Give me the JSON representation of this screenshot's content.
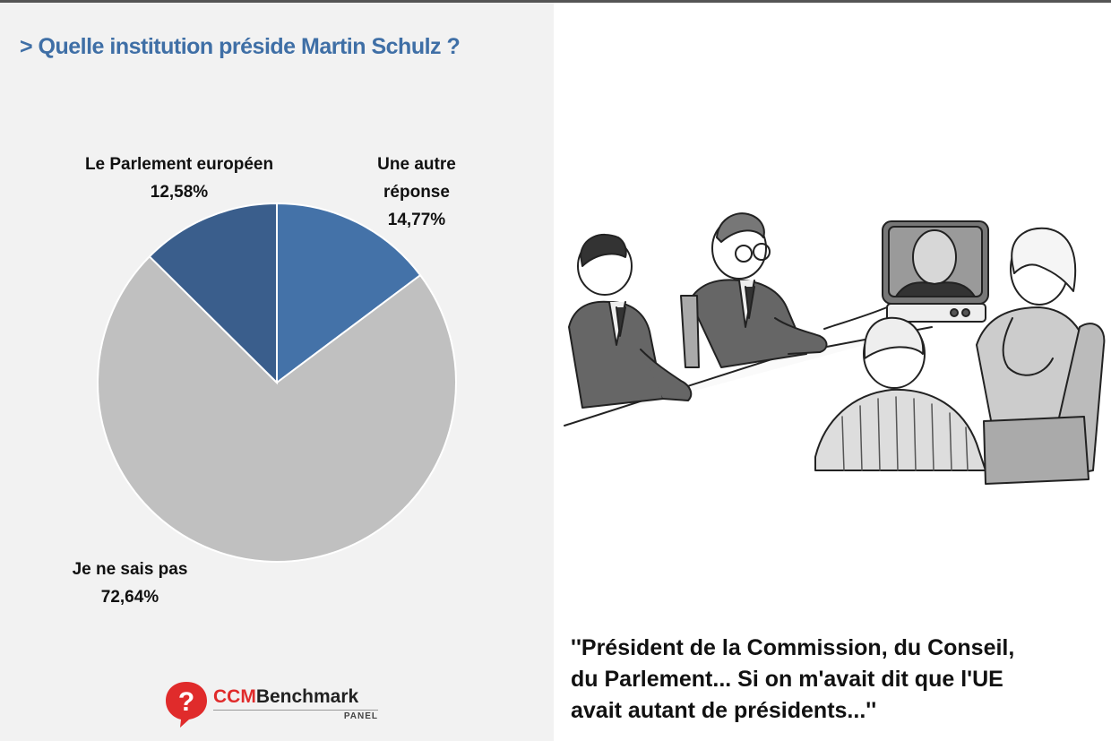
{
  "chart_data": {
    "type": "pie",
    "title": "> Quelle institution préside Martin Schulz ?",
    "slices": [
      {
        "label": "Une autre réponse",
        "label_lines": [
          "Une autre",
          "réponse"
        ],
        "value": 14.77,
        "value_text": "14,77%",
        "color": "#4472a8"
      },
      {
        "label": "Je ne sais pas",
        "label_lines": [
          "Je ne sais pas"
        ],
        "value": 72.64,
        "value_text": "72,64%",
        "color": "#c0c0c0"
      },
      {
        "label": "Le Parlement européen",
        "label_lines": [
          "Le Parlement européen"
        ],
        "value": 12.58,
        "value_text": "12,58%",
        "color": "#3a5e8c"
      }
    ],
    "start_angle_deg": 0,
    "direction": "clockwise",
    "legend": "none"
  },
  "logo": {
    "brand_prefix": "CCM",
    "brand_suffix": "Benchmark",
    "sub": "PANEL"
  },
  "caption": {
    "lines": [
      "''Président de la Commission, du Conseil,",
      "du Parlement... Si on m'avait dit que l'UE",
      "avait autant de présidents...''"
    ]
  }
}
